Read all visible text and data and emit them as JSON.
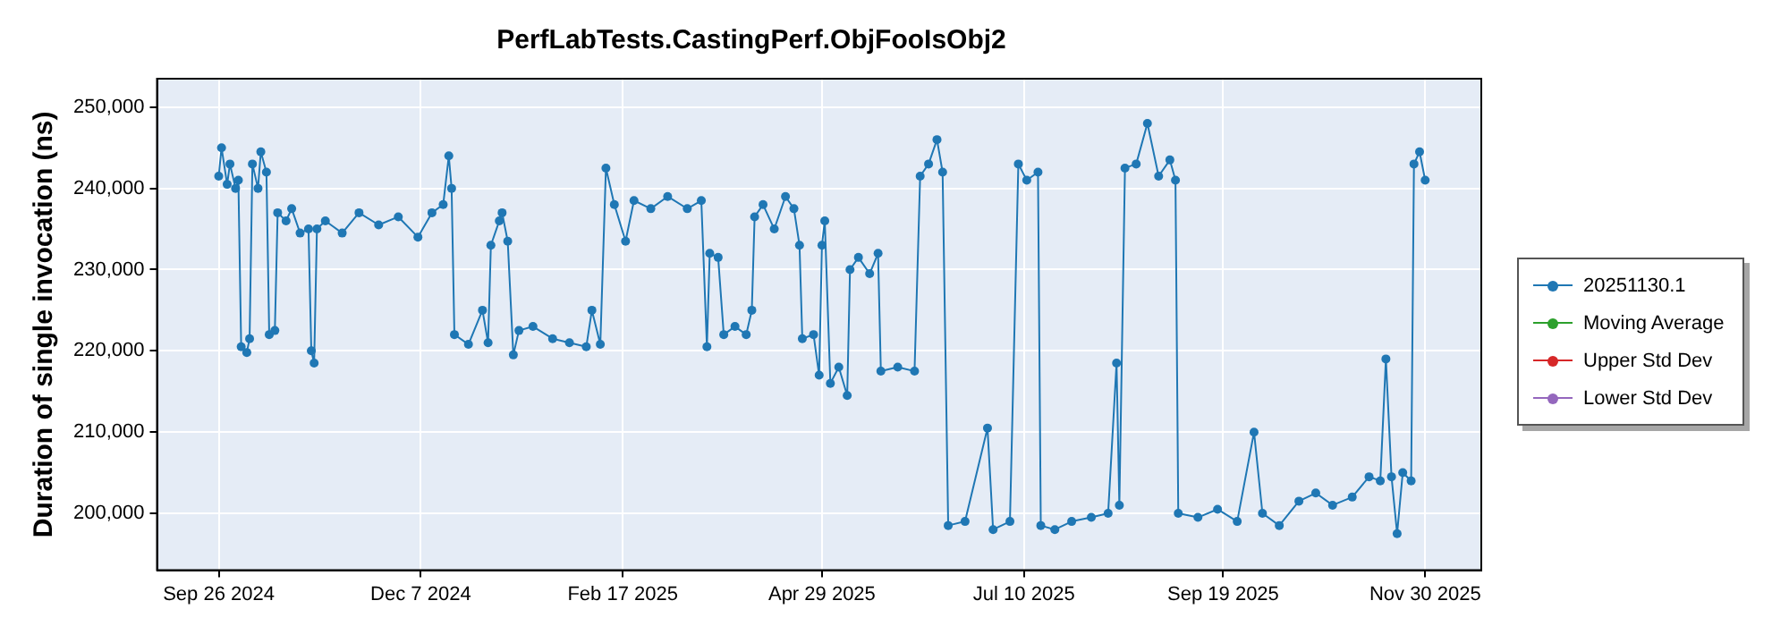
{
  "chart_data": {
    "type": "line",
    "title": "PerfLabTests.CastingPerf.ObjFooIsObj2",
    "ylabel": "Duration of single invocation (ns)",
    "x": [
      "2024-09-26",
      "2024-09-27",
      "2024-09-29",
      "2024-09-30",
      "2024-10-02",
      "2024-10-03",
      "2024-10-04",
      "2024-10-06",
      "2024-10-07",
      "2024-10-08",
      "2024-10-10",
      "2024-10-11",
      "2024-10-13",
      "2024-10-14",
      "2024-10-16",
      "2024-10-17",
      "2024-10-20",
      "2024-10-22",
      "2024-10-25",
      "2024-10-28",
      "2024-10-29",
      "2024-10-30",
      "2024-10-31",
      "2024-11-03",
      "2024-11-09",
      "2024-11-15",
      "2024-11-22",
      "2024-11-29",
      "2024-12-06",
      "2024-12-11",
      "2024-12-15",
      "2024-12-17",
      "2024-12-18",
      "2024-12-19",
      "2024-12-24",
      "2024-12-29",
      "2024-12-31",
      "2025-01-01",
      "2025-01-04",
      "2025-01-05",
      "2025-01-07",
      "2025-01-09",
      "2025-01-11",
      "2025-01-16",
      "2025-01-23",
      "2025-01-29",
      "2025-02-04",
      "2025-02-06",
      "2025-02-09",
      "2025-02-11",
      "2025-02-14",
      "2025-02-18",
      "2025-02-21",
      "2025-02-27",
      "2025-03-05",
      "2025-03-12",
      "2025-03-17",
      "2025-03-19",
      "2025-03-20",
      "2025-03-23",
      "2025-03-25",
      "2025-03-29",
      "2025-04-02",
      "2025-04-04",
      "2025-04-05",
      "2025-04-08",
      "2025-04-12",
      "2025-04-16",
      "2025-04-19",
      "2025-04-21",
      "2025-04-22",
      "2025-04-26",
      "2025-04-28",
      "2025-04-29",
      "2025-04-30",
      "2025-05-02",
      "2025-05-05",
      "2025-05-08",
      "2025-05-09",
      "2025-05-12",
      "2025-05-16",
      "2025-05-19",
      "2025-05-20",
      "2025-05-26",
      "2025-06-01",
      "2025-06-03",
      "2025-06-06",
      "2025-06-09",
      "2025-06-11",
      "2025-06-13",
      "2025-06-19",
      "2025-06-27",
      "2025-06-29",
      "2025-07-05",
      "2025-07-08",
      "2025-07-11",
      "2025-07-15",
      "2025-07-16",
      "2025-07-21",
      "2025-07-27",
      "2025-08-03",
      "2025-08-09",
      "2025-08-12",
      "2025-08-13",
      "2025-08-15",
      "2025-08-19",
      "2025-08-23",
      "2025-08-27",
      "2025-08-31",
      "2025-09-02",
      "2025-09-03",
      "2025-09-10",
      "2025-09-17",
      "2025-09-24",
      "2025-09-30",
      "2025-10-03",
      "2025-10-09",
      "2025-10-16",
      "2025-10-22",
      "2025-10-28",
      "2025-11-04",
      "2025-11-10",
      "2025-11-14",
      "2025-11-16",
      "2025-11-18",
      "2025-11-20",
      "2025-11-22",
      "2025-11-25",
      "2025-11-26",
      "2025-11-28",
      "2025-11-30"
    ],
    "series": [
      {
        "name": "20251130.1",
        "color": "#1f77b4",
        "values": [
          241500,
          245000,
          240500,
          243000,
          240000,
          241000,
          220500,
          219800,
          221500,
          243000,
          240000,
          244500,
          242000,
          222000,
          222500,
          237000,
          236000,
          237500,
          234500,
          235000,
          220000,
          218500,
          235000,
          236000,
          234500,
          237000,
          235500,
          236500,
          234000,
          237000,
          238000,
          244000,
          240000,
          222000,
          220800,
          225000,
          221000,
          233000,
          236000,
          237000,
          233500,
          219500,
          222500,
          223000,
          221500,
          221000,
          220500,
          225000,
          220800,
          242500,
          238000,
          233500,
          238500,
          237500,
          239000,
          237500,
          238500,
          220500,
          232000,
          231500,
          222000,
          223000,
          222000,
          225000,
          236500,
          238000,
          235000,
          239000,
          237500,
          233000,
          221500,
          222000,
          217000,
          233000,
          236000,
          216000,
          218000,
          214500,
          230000,
          231500,
          229500,
          232000,
          217500,
          218000,
          217500,
          241500,
          243000,
          246000,
          242000,
          198500,
          199000,
          210500,
          198000,
          199000,
          243000,
          241000,
          242000,
          198500,
          198000,
          199000,
          199500,
          200000,
          218500,
          201000,
          242500,
          243000,
          248000,
          241500,
          243500,
          241000,
          200000,
          199500,
          200500,
          199000,
          210000,
          200000,
          198500,
          201500,
          202500,
          201000,
          202000,
          204500,
          204000,
          219000,
          204500,
          197500,
          205000,
          204000,
          243000,
          244500,
          241000
        ]
      },
      {
        "name": "Moving Average",
        "color": "#2ca02c",
        "values": [
          null,
          null,
          null,
          null,
          null,
          null,
          null,
          null,
          null,
          null,
          null,
          null,
          null,
          null,
          null,
          null,
          null,
          null,
          null,
          null,
          null,
          null,
          null,
          null,
          null,
          null,
          null,
          null,
          null,
          null,
          null,
          null,
          null,
          null,
          null,
          null,
          null,
          null,
          null,
          null,
          null,
          null,
          null,
          null,
          null,
          null,
          null,
          null,
          null,
          null,
          null,
          null,
          null,
          null,
          null,
          null,
          null,
          null,
          null,
          null,
          null,
          null,
          null,
          null,
          null,
          null,
          null,
          null,
          null,
          null,
          null,
          null,
          null,
          null,
          null,
          null,
          null,
          null,
          null,
          null,
          null,
          null,
          null,
          null,
          null,
          null,
          null,
          null,
          null,
          null,
          null,
          null,
          null,
          null,
          null,
          null,
          null,
          null,
          null,
          null,
          null,
          null,
          null,
          null,
          null,
          null,
          null,
          null,
          null,
          null,
          null,
          null,
          null,
          null,
          null,
          null,
          null,
          null,
          null,
          null,
          null,
          null,
          null,
          null,
          null,
          null,
          null,
          null,
          null,
          null,
          null
        ]
      },
      {
        "name": "Upper Std Dev",
        "color": "#d62728",
        "values": [
          null,
          null,
          null,
          null,
          null,
          null,
          null,
          null,
          null,
          null,
          null,
          null,
          null,
          null,
          null,
          null,
          null,
          null,
          null,
          null,
          null,
          null,
          null,
          null,
          null,
          null,
          null,
          null,
          null,
          null,
          null,
          null,
          null,
          null,
          null,
          null,
          null,
          null,
          null,
          null,
          null,
          null,
          null,
          null,
          null,
          null,
          null,
          null,
          null,
          null,
          null,
          null,
          null,
          null,
          null,
          null,
          null,
          null,
          null,
          null,
          null,
          null,
          null,
          null,
          null,
          null,
          null,
          null,
          null,
          null,
          null,
          null,
          null,
          null,
          null,
          null,
          null,
          null,
          null,
          null,
          null,
          null,
          null,
          null,
          null,
          null,
          null,
          null,
          null,
          null,
          null,
          null,
          null,
          null,
          null,
          null,
          null,
          null,
          null,
          null,
          null,
          null,
          null,
          null,
          null,
          null,
          null,
          null,
          null,
          null,
          null,
          null,
          null,
          null,
          null,
          null,
          null,
          null,
          null,
          null,
          null,
          null,
          null,
          null,
          null,
          null,
          null,
          null,
          null,
          null,
          null
        ]
      },
      {
        "name": "Lower Std Dev",
        "color": "#9467bd",
        "values": [
          null,
          null,
          null,
          null,
          null,
          null,
          null,
          null,
          null,
          null,
          null,
          null,
          null,
          null,
          null,
          null,
          null,
          null,
          null,
          null,
          null,
          null,
          null,
          null,
          null,
          null,
          null,
          null,
          null,
          null,
          null,
          null,
          null,
          null,
          null,
          null,
          null,
          null,
          null,
          null,
          null,
          null,
          null,
          null,
          null,
          null,
          null,
          null,
          null,
          null,
          null,
          null,
          null,
          null,
          null,
          null,
          null,
          null,
          null,
          null,
          null,
          null,
          null,
          null,
          null,
          null,
          null,
          null,
          null,
          null,
          null,
          null,
          null,
          null,
          null,
          null,
          null,
          null,
          null,
          null,
          null,
          null,
          null,
          null,
          null,
          null,
          null,
          null,
          null,
          null,
          null,
          null,
          null,
          null,
          null,
          null,
          null,
          null,
          null,
          null,
          null,
          null,
          null,
          null,
          null,
          null,
          null,
          null,
          null,
          null,
          null,
          null,
          null,
          null,
          null,
          null,
          null,
          null,
          null,
          null,
          null,
          null,
          null,
          null,
          null,
          null,
          null,
          null,
          null,
          null,
          null
        ]
      }
    ],
    "xlim": [
      "2024-09-04",
      "2025-12-20"
    ],
    "xticks": [
      {
        "value": "2024-09-26",
        "label": "Sep 26 2024"
      },
      {
        "value": "2024-12-07",
        "label": "Dec 7 2024"
      },
      {
        "value": "2025-02-17",
        "label": "Feb 17 2025"
      },
      {
        "value": "2025-04-29",
        "label": "Apr 29 2025"
      },
      {
        "value": "2025-07-10",
        "label": "Jul 10 2025"
      },
      {
        "value": "2025-09-19",
        "label": "Sep 19 2025"
      },
      {
        "value": "2025-11-30",
        "label": "Nov 30 2025"
      }
    ],
    "ylim": [
      193000,
      253500
    ],
    "yticks": [
      {
        "value": 200000,
        "label": "200,000"
      },
      {
        "value": 210000,
        "label": "210,000"
      },
      {
        "value": 220000,
        "label": "220,000"
      },
      {
        "value": 230000,
        "label": "230,000"
      },
      {
        "value": 240000,
        "label": "240,000"
      },
      {
        "value": 250000,
        "label": "250,000"
      }
    ],
    "grid": true,
    "legend": "right",
    "marker": "circle",
    "line_style": "solid"
  }
}
